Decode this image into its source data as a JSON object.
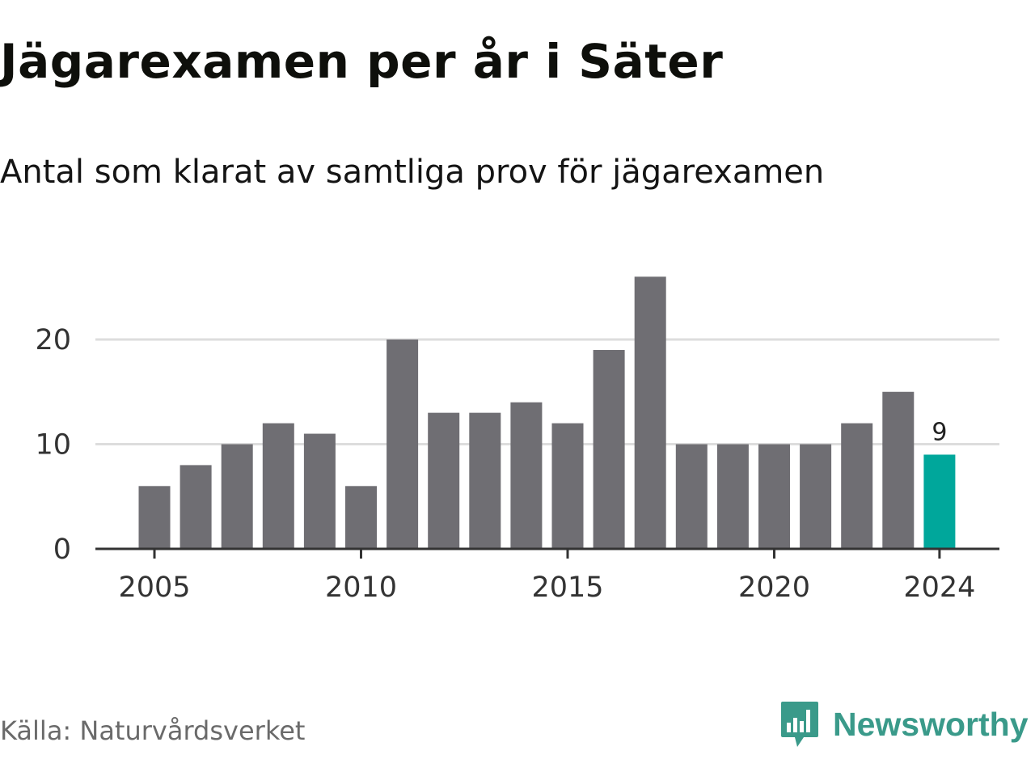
{
  "title": "Jägarexamen per år i Säter",
  "subtitle": "Antal som klarat av samtliga prov för jägarexamen",
  "source": "Källa: Naturvårdsverket",
  "brand": {
    "name": "Newsworthy",
    "icon": "newsworthy-logo-icon"
  },
  "colors": {
    "bar": "#6f6e73",
    "highlight": "#00a79b",
    "brand": "#3a9a8a",
    "grid": "#dddddd",
    "axis": "#333333"
  },
  "chart_data": {
    "type": "bar",
    "categories": [
      2005,
      2006,
      2007,
      2008,
      2009,
      2010,
      2011,
      2012,
      2013,
      2014,
      2015,
      2016,
      2017,
      2018,
      2019,
      2020,
      2021,
      2022,
      2023,
      2024
    ],
    "values": [
      6,
      8,
      10,
      12,
      11,
      6,
      20,
      13,
      13,
      14,
      12,
      19,
      26,
      10,
      10,
      10,
      10,
      12,
      15,
      9
    ],
    "highlight": {
      "category": 2024,
      "label": "9"
    },
    "x_ticks": [
      "2005",
      "2010",
      "2015",
      "2020",
      "2024"
    ],
    "y_ticks": [
      0,
      10,
      20
    ],
    "ylim": [
      0,
      28
    ],
    "grid": true
  }
}
